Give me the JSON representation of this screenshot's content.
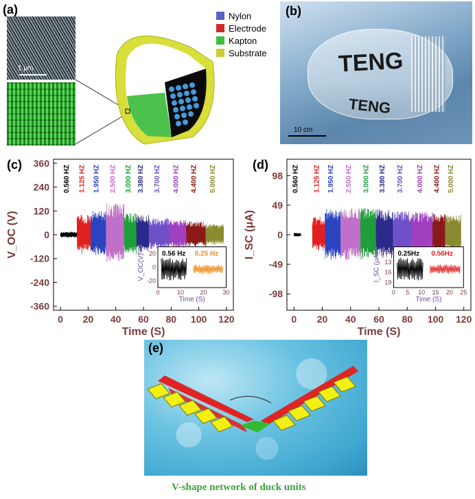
{
  "panels": {
    "a": {
      "label": "(a)",
      "scale_bar": "1 μm",
      "legend": [
        {
          "name": "Nylon",
          "color": "#5560c8"
        },
        {
          "name": "Electrode",
          "color": "#d22a2a"
        },
        {
          "name": "Kapton",
          "color": "#3fbf3f"
        },
        {
          "name": "Substrate",
          "color": "#c9cf34"
        }
      ]
    },
    "b": {
      "label": "(b)",
      "text_top": "TENG",
      "text_bottom": "TENG",
      "scale_bar": "10 cm"
    },
    "c": {
      "label": "(c)"
    },
    "d": {
      "label": "(d)"
    },
    "e": {
      "label": "(e)",
      "caption": "V-shape network of duck units"
    }
  },
  "chart_data": [
    {
      "type": "line",
      "panel": "c",
      "xlabel": "Time (S)",
      "ylabel": "V_OC (V)",
      "xticks": [
        0,
        20,
        40,
        60,
        80,
        100,
        120
      ],
      "yticks": [
        360,
        240,
        120,
        0,
        -120,
        -240,
        -360
      ],
      "xlim": [
        -5,
        125
      ],
      "ylim": [
        -380,
        380
      ],
      "series": [
        {
          "name": "0.560 HZ",
          "color": "#000000",
          "x_range": [
            0,
            12
          ],
          "amplitude": 15
        },
        {
          "name": "1.125 HZ",
          "color": "#e02020",
          "x_range": [
            12,
            22
          ],
          "amplitude": 100
        },
        {
          "name": "1.950 HZ",
          "color": "#2a44c0",
          "x_range": [
            22,
            33
          ],
          "amplitude": 120
        },
        {
          "name": "2.500 HZ",
          "color": "#c070c8",
          "x_range": [
            33,
            46
          ],
          "amplitude": 160
        },
        {
          "name": "3.000 HZ",
          "color": "#1e9e3a",
          "x_range": [
            46,
            55
          ],
          "amplitude": 110
        },
        {
          "name": "3.380 HZ",
          "color": "#2a2a8a",
          "x_range": [
            55,
            64
          ],
          "amplitude": 100
        },
        {
          "name": "3.700 HZ",
          "color": "#7050c8",
          "x_range": [
            64,
            79
          ],
          "amplitude": 85
        },
        {
          "name": "4.000 HZ",
          "color": "#a040c0",
          "x_range": [
            79,
            91
          ],
          "amplitude": 75
        },
        {
          "name": "4.400 HZ",
          "color": "#8a1a1a",
          "x_range": [
            91,
            105
          ],
          "amplitude": 70
        },
        {
          "name": "5.000 HZ",
          "color": "#8a8a30",
          "x_range": [
            105,
            118
          ],
          "amplitude": 55
        }
      ],
      "inset": {
        "xlabel": "Time (S)",
        "ylabel": "V_OC(V)",
        "xticks": [
          0,
          10,
          20,
          30
        ],
        "yticks": [
          20,
          0,
          -20
        ],
        "labels": [
          {
            "text": "0.56 Hz",
            "color": "#000000"
          },
          {
            "text": "0.25 Hz",
            "color": "#f08a1a"
          }
        ]
      }
    },
    {
      "type": "line",
      "panel": "d",
      "xlabel": "Time (S)",
      "ylabel": "I_SC (μA)",
      "xticks": [
        0,
        20,
        40,
        60,
        80,
        100,
        120
      ],
      "yticks": [
        98,
        49,
        0,
        -49,
        -98
      ],
      "xlim": [
        -5,
        125
      ],
      "ylim": [
        -125,
        125
      ],
      "series": [
        {
          "name": "0.560 HZ",
          "color": "#000000",
          "x_range": [
            0,
            5
          ],
          "amplitude": 3
        },
        {
          "name": "1.125 HZ",
          "color": "#e02020",
          "x_range": [
            13,
            22
          ],
          "amplitude": 30
        },
        {
          "name": "1.950 HZ",
          "color": "#2a44c0",
          "x_range": [
            22,
            33
          ],
          "amplitude": 45
        },
        {
          "name": "2.500 HZ",
          "color": "#c070c8",
          "x_range": [
            33,
            47
          ],
          "amplitude": 45
        },
        {
          "name": "3.000 HZ",
          "color": "#1e9e3a",
          "x_range": [
            47,
            58
          ],
          "amplitude": 45
        },
        {
          "name": "3.380 HZ",
          "color": "#2a2a8a",
          "x_range": [
            58,
            70
          ],
          "amplitude": 42
        },
        {
          "name": "3.700 HZ",
          "color": "#7050c8",
          "x_range": [
            70,
            83
          ],
          "amplitude": 40
        },
        {
          "name": "4.000 HZ",
          "color": "#a040c0",
          "x_range": [
            83,
            98
          ],
          "amplitude": 38
        },
        {
          "name": "4.400 HZ",
          "color": "#8a1a1a",
          "x_range": [
            98,
            107
          ],
          "amplitude": 35
        },
        {
          "name": "5.000 HZ",
          "color": "#8a8a30",
          "x_range": [
            107,
            118
          ],
          "amplitude": 33
        }
      ],
      "inset": {
        "xlabel": "Time (S)",
        "ylabel": "I_SC (μA)",
        "xticks": [
          0,
          5,
          10,
          15,
          20,
          25
        ],
        "yticks": [
          10,
          13,
          16,
          19
        ],
        "labels": [
          {
            "text": "0.25Hz",
            "color": "#000000"
          },
          {
            "text": "0.56Hz",
            "color": "#e02020"
          }
        ]
      }
    }
  ]
}
